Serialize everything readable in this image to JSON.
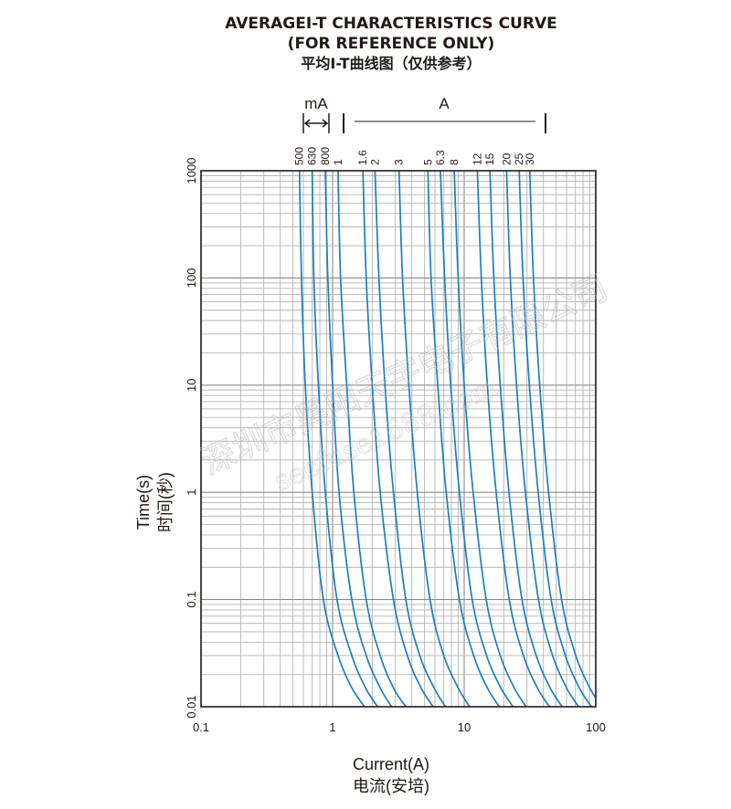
{
  "chart_data": {
    "type": "line",
    "title_lines": [
      "AVERAGEI-T CHARACTERISTICS CURVE",
      "(FOR REFERENCE ONLY)",
      "平均I-T曲线图（仅供参考）"
    ],
    "xlabel": "Current(A)",
    "xlabel_cn": "电流(安培)",
    "ylabel": "Time(s)",
    "ylabel_cn": "时间(秒)",
    "x_scale": "log",
    "y_scale": "log",
    "xlim": [
      0.1,
      100
    ],
    "ylim": [
      0.01,
      1000
    ],
    "x_ticks": [
      "0.1",
      "1",
      "10",
      "100"
    ],
    "y_ticks": [
      "0.01",
      "0.1",
      "1",
      "10",
      "100",
      "1000"
    ],
    "grid": true,
    "range_labels": {
      "ma": "mA",
      "a": "A"
    },
    "curve_color": "#1a7fc1",
    "series": [
      {
        "name": "500",
        "x": [
          0.56,
          0.58,
          0.62,
          0.7,
          0.85,
          1.1,
          1.4,
          1.75
        ],
        "y": [
          1000,
          100,
          10,
          1,
          0.1,
          0.03,
          0.015,
          0.01
        ]
      },
      {
        "name": "630",
        "x": [
          0.7,
          0.72,
          0.78,
          0.88,
          1.08,
          1.4,
          1.78,
          2.2
        ],
        "y": [
          1000,
          100,
          10,
          1,
          0.1,
          0.03,
          0.015,
          0.01
        ]
      },
      {
        "name": "800",
        "x": [
          0.88,
          0.92,
          1.0,
          1.12,
          1.4,
          1.8,
          2.3,
          2.8
        ],
        "y": [
          1000,
          100,
          10,
          1,
          0.1,
          0.03,
          0.015,
          0.01
        ]
      },
      {
        "name": "1",
        "x": [
          1.1,
          1.15,
          1.28,
          1.45,
          1.8,
          2.3,
          2.9,
          3.6
        ],
        "y": [
          1000,
          100,
          10,
          1,
          0.1,
          0.03,
          0.015,
          0.01
        ]
      },
      {
        "name": "1.6",
        "x": [
          1.7,
          1.8,
          2.0,
          2.3,
          2.9,
          3.7,
          4.7,
          5.8
        ],
        "y": [
          1000,
          100,
          10,
          1,
          0.1,
          0.03,
          0.015,
          0.01
        ]
      },
      {
        "name": "2",
        "x": [
          2.1,
          2.25,
          2.5,
          2.9,
          3.6,
          4.6,
          5.9,
          7.2
        ],
        "y": [
          1000,
          100,
          10,
          1,
          0.1,
          0.03,
          0.015,
          0.01
        ]
      },
      {
        "name": "3",
        "x": [
          3.2,
          3.4,
          3.8,
          4.4,
          5.5,
          7.0,
          9.0,
          11.0
        ],
        "y": [
          1000,
          100,
          10,
          1,
          0.1,
          0.03,
          0.015,
          0.01
        ]
      },
      {
        "name": "5",
        "x": [
          5.3,
          5.6,
          6.3,
          7.3,
          9.2,
          11.8,
          15.0,
          18.5
        ],
        "y": [
          1000,
          100,
          10,
          1,
          0.1,
          0.03,
          0.015,
          0.01
        ]
      },
      {
        "name": "6.3",
        "x": [
          6.6,
          7.1,
          7.9,
          9.2,
          11.5,
          14.8,
          19.0,
          23.5
        ],
        "y": [
          1000,
          100,
          10,
          1,
          0.1,
          0.03,
          0.015,
          0.01
        ]
      },
      {
        "name": "8",
        "x": [
          8.4,
          9.0,
          10.0,
          11.7,
          14.7,
          18.8,
          24.0,
          29.5
        ],
        "y": [
          1000,
          100,
          10,
          1,
          0.1,
          0.03,
          0.015,
          0.01
        ]
      },
      {
        "name": "12",
        "x": [
          12.6,
          13.5,
          15.0,
          17.5,
          22.0,
          28.2,
          36.0,
          44.5
        ],
        "y": [
          1000,
          100,
          10,
          1,
          0.1,
          0.03,
          0.015,
          0.01
        ]
      },
      {
        "name": "15",
        "x": [
          15.7,
          16.8,
          18.8,
          21.9,
          27.5,
          35.3,
          45.0,
          55.5
        ],
        "y": [
          1000,
          100,
          10,
          1,
          0.1,
          0.03,
          0.015,
          0.01
        ]
      },
      {
        "name": "20",
        "x": [
          21.0,
          22.4,
          25.0,
          29.2,
          36.7,
          47.0,
          60.0,
          74.0
        ],
        "y": [
          1000,
          100,
          10,
          1,
          0.1,
          0.03,
          0.015,
          0.01
        ]
      },
      {
        "name": "25",
        "x": [
          26.2,
          28.0,
          31.3,
          36.5,
          45.8,
          58.8,
          75.0,
          92.5
        ],
        "y": [
          1000,
          100,
          10,
          1,
          0.1,
          0.03,
          0.015,
          0.01
        ]
      },
      {
        "name": "30",
        "x": [
          31.5,
          33.6,
          37.5,
          43.8,
          55.0,
          70.5,
          90.0,
          111.0
        ],
        "y": [
          1000,
          100,
          10,
          1,
          0.1,
          0.03,
          0.015,
          0.01
        ]
      }
    ]
  },
  "watermark": {
    "company": "深圳市昊阳天宇电子有限公司",
    "site": "secfuse1688.com"
  }
}
